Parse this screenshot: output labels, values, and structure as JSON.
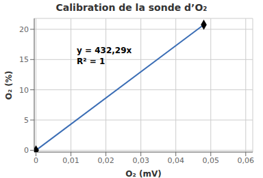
{
  "chart_data": {
    "type": "line",
    "title": "Calibration de la sonde d’O₂",
    "x_label": "O₂ (mV)",
    "y_label": "O₂ (%)",
    "x": [
      0.0,
      0.048
    ],
    "series": [
      {
        "type": "line",
        "color": "#3a6db5",
        "values": [
          0.0,
          20.75
        ]
      },
      {
        "type": "scatter",
        "color": "#000000",
        "marker": "diamond",
        "values": [
          0.0,
          20.75
        ]
      }
    ],
    "xlim": [
      -0.0005,
      0.062
    ],
    "ylim": [
      -0.3,
      21.8
    ],
    "xticks": [
      0,
      {
        "value": 0.01,
        "label": "0,01"
      },
      {
        "value": 0.02,
        "label": "0,02"
      },
      {
        "value": 0.03,
        "label": "0,03"
      },
      {
        "value": 0.04,
        "label": "0,04"
      },
      {
        "value": 0.05,
        "label": "0,05"
      },
      {
        "value": 0.06,
        "label": "0,06"
      }
    ],
    "yticks": [
      0,
      5,
      10,
      15,
      20
    ],
    "annotations": [
      "y = 432,29x",
      "R² = 1"
    ],
    "grid": true
  }
}
